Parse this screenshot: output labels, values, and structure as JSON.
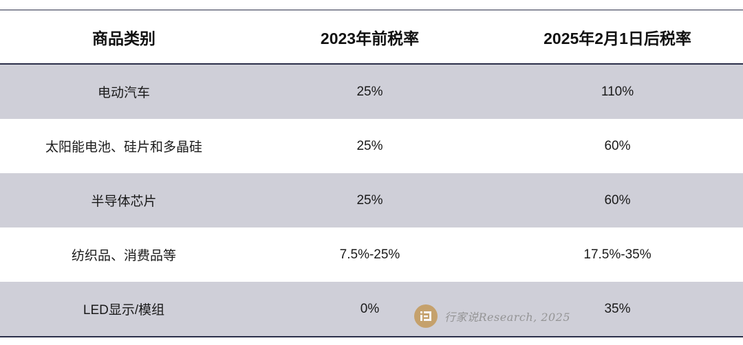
{
  "table": {
    "headers": [
      "商品类别",
      "2023年前税率",
      "2025年2月1日后税率"
    ],
    "rows": [
      [
        "电动汽车",
        "25%",
        "110%"
      ],
      [
        "太阳能电池、硅片和多晶硅",
        "25%",
        "60%"
      ],
      [
        "半导体芯片",
        "25%",
        "60%"
      ],
      [
        "纺织品、消费品等",
        "7.5%-25%",
        "17.5%-35%"
      ],
      [
        "LED显示/模组",
        "0%",
        "35%"
      ]
    ]
  },
  "watermark": {
    "text": "行家说Research, 2025",
    "logo_icon": "hangjiashuo-logo-icon",
    "logo_color": "#c49a5a"
  },
  "colors": {
    "row_shade": "#cfcfd8",
    "rule": "#2b2f4a"
  }
}
